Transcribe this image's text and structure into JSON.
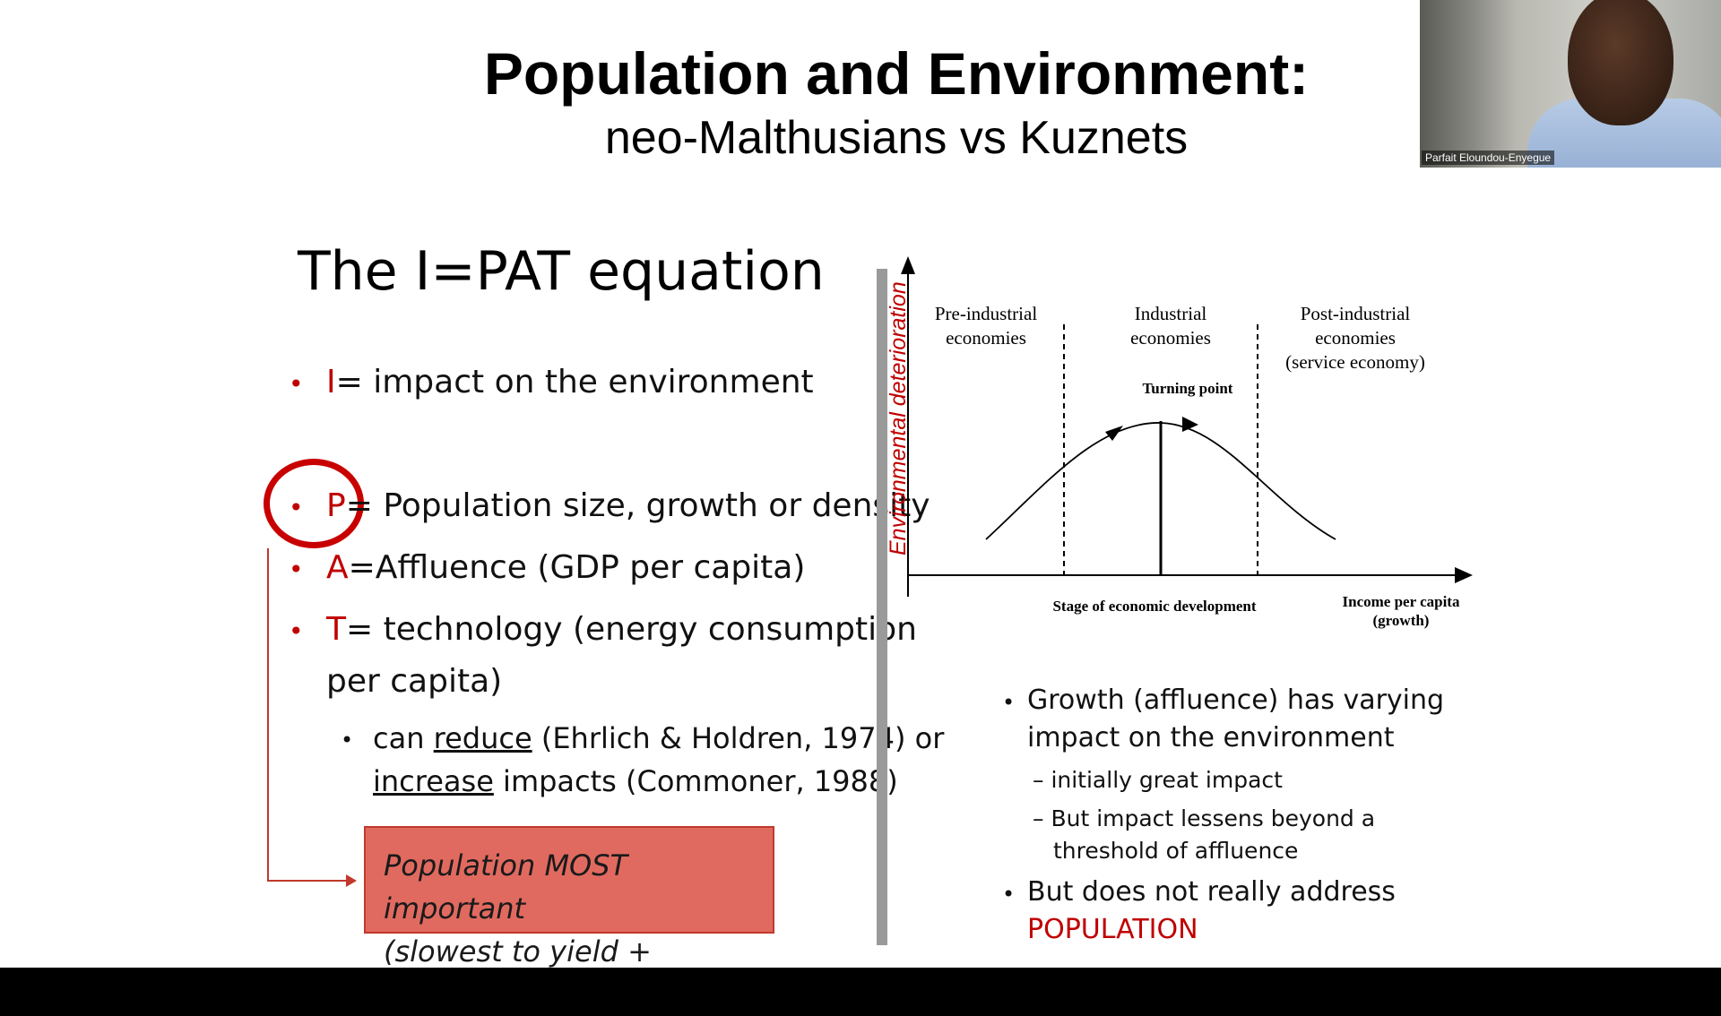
{
  "slide": {
    "title": "Population and Environment:",
    "subtitle": "neo-Malthusians vs Kuznets"
  },
  "webcam": {
    "participant_name": "Parfait Eloundou-Enyegue"
  },
  "left": {
    "heading": "The I=PAT equation",
    "bullets": [
      {
        "key": "I",
        "text": "= impact on the environment"
      },
      {
        "key": "P",
        "text": "= Population size, growth or density"
      },
      {
        "key": "A",
        "text": "=Affluence (GDP per capita)"
      },
      {
        "key": "T",
        "text": "= technology (energy consumption",
        "text2": "per capita)"
      }
    ],
    "sub_bullet": {
      "pre": "can ",
      "u1": "reduce",
      "mid": " (Ehrlich & Holdren, 1974) or",
      "u2": "increase",
      "post": " impacts (Commoner, 1988)"
    },
    "callout": {
      "line1": "Population MOST important",
      "line2": "(slowest to yield + momentum)"
    }
  },
  "chart_data": {
    "type": "line",
    "ylabel": "Environmental deterioration",
    "xlabel": "Stage of economic development",
    "xlabel_right_1": "Income per capita",
    "xlabel_right_2": "(growth)",
    "regions": [
      {
        "line1": "Pre-industrial",
        "line2": "economies",
        "line3": ""
      },
      {
        "line1": "Industrial",
        "line2": "economies",
        "line3": ""
      },
      {
        "line1": "Post-industrial",
        "line2": "economies",
        "line3": "(service economy)"
      }
    ],
    "annotation": "Turning  point",
    "curve_shape": "inverted-U",
    "grid": false
  },
  "right": {
    "bullet1_line1": "Growth (affluence) has varying",
    "bullet1_line2": "impact on the environment",
    "dash1": "– initially great impact",
    "dash2_line1": "– But impact lessens beyond a",
    "dash2_line2": "threshold of affluence",
    "bullet2_line1": "But does not really address",
    "bullet2_line2": "POPULATION"
  },
  "colors": {
    "accent_red": "#c00000",
    "callout_fill": "#e06a5f",
    "divider": "#9a9a9a"
  }
}
